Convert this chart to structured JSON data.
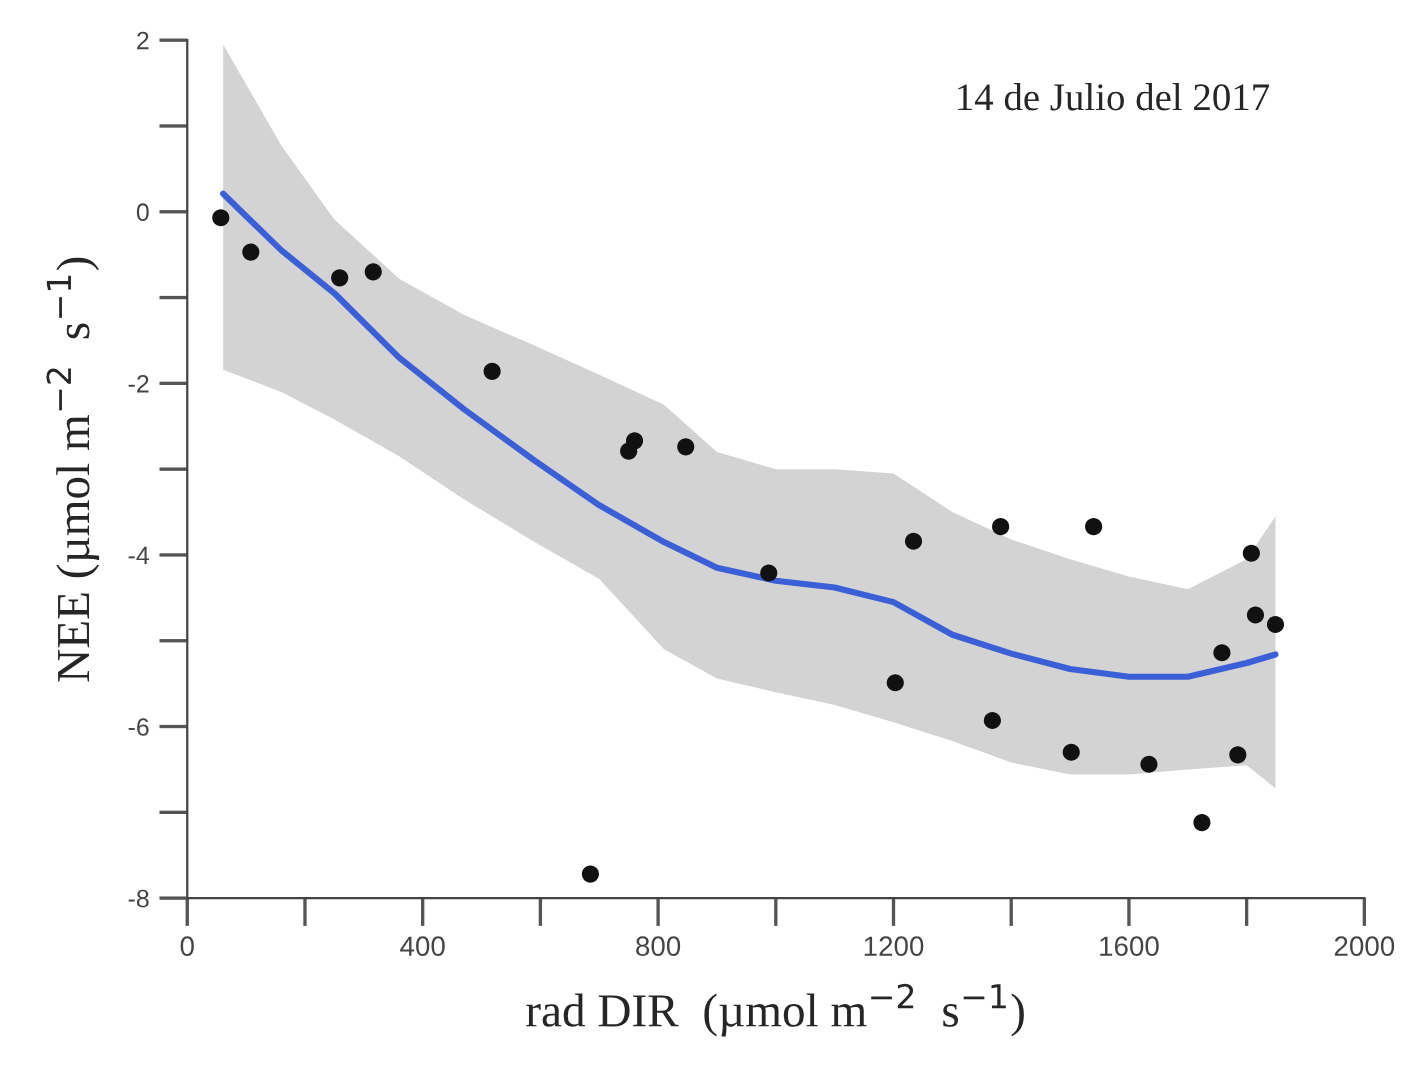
{
  "chart_data": {
    "type": "scatter",
    "xlabel": "rad DIR  (µmol m$^{−2}$  s$^{−1}$)",
    "ylabel": "NEE (µmol m$^{−2}$  s$^{−1}$)",
    "annotations": [
      "14 de Julio del 2017"
    ],
    "xlim": [
      0,
      2000
    ],
    "ylim": [
      -8,
      2
    ],
    "xticks": [
      0,
      {
        "value": 200,
        "label": null
      },
      400,
      {
        "value": 600,
        "label": null
      },
      800,
      {
        "value": 1000,
        "label": null
      },
      1200,
      {
        "value": 1400,
        "label": null
      },
      1600,
      {
        "value": 1800,
        "label": null
      },
      2000
    ],
    "yticks": [
      -8,
      {
        "value": -7,
        "label": null
      },
      -6,
      {
        "value": -5,
        "label": null
      },
      -4,
      {
        "value": -3,
        "label": null
      },
      -2,
      {
        "value": -1,
        "label": null
      },
      0,
      {
        "value": 1,
        "label": null
      },
      2
    ],
    "grid": false,
    "legend": false,
    "series": [
      {
        "marker": "circle",
        "color": "#111111",
        "x": [
          57,
          108,
          259,
          316,
          518,
          750,
          760,
          847,
          988,
          1234,
          1382,
          1540,
          1808,
          1203,
          1368,
          1502,
          1634,
          1724,
          1785,
          1758,
          1815,
          1849,
          685
        ],
        "values": [
          -0.07,
          -0.47,
          -0.77,
          -0.7,
          -1.86,
          -2.79,
          -2.67,
          -2.74,
          -4.21,
          -3.84,
          -3.67,
          -3.67,
          -3.98,
          -5.49,
          -5.93,
          -6.3,
          -6.44,
          -7.12,
          -6.33,
          -5.14,
          -4.7,
          -4.81,
          -7.72
        ]
      },
      {
        "type": "line",
        "color": "#3a5fd6",
        "x": [
          61,
          160,
          250,
          360,
          470,
          590,
          700,
          810,
          900,
          1000,
          1100,
          1200,
          1300,
          1400,
          1500,
          1600,
          1700,
          1800,
          1849
        ],
        "values": [
          0.21,
          -0.45,
          -0.95,
          -1.7,
          -2.3,
          -2.9,
          -3.42,
          -3.85,
          -4.15,
          -4.3,
          -4.38,
          -4.55,
          -4.93,
          -5.15,
          -5.33,
          -5.42,
          -5.42,
          -5.26,
          -5.16
        ],
        "upper": [
          1.95,
          0.77,
          -0.09,
          -0.78,
          -1.2,
          -1.56,
          -1.9,
          -2.25,
          -2.8,
          -3.0,
          -3.0,
          -3.05,
          -3.5,
          -3.82,
          -4.05,
          -4.25,
          -4.4,
          -4.05,
          -3.55
        ],
        "lower": [
          -1.84,
          -2.1,
          -2.42,
          -2.85,
          -3.35,
          -3.85,
          -4.28,
          -5.1,
          -5.44,
          -5.6,
          -5.75,
          -5.95,
          -6.17,
          -6.42,
          -6.56,
          -6.56,
          -6.5,
          -6.45,
          -6.72
        ]
      }
    ]
  }
}
